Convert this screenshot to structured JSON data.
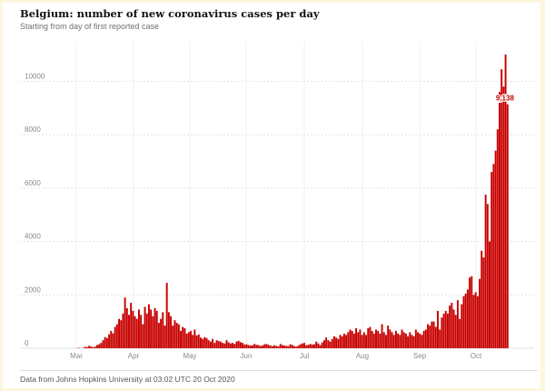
{
  "header": {
    "title": "Belgium: number of new coronavirus cases per day",
    "subtitle": "Starting from day of first reported case"
  },
  "footer": {
    "source": "Data from Johns Hopkins University at 03:02 UTC 20 Oct 2020"
  },
  "colors": {
    "bar": "#c70000",
    "grid": "#e2e2e2",
    "tick_label": "#8a8a8a",
    "background_edge": "#fdf6dd"
  },
  "chart_data": {
    "type": "bar",
    "title": "Belgium: number of new coronavirus cases per day",
    "subtitle": "Starting from day of first reported case",
    "xlabel": "",
    "ylabel": "",
    "ylim": [
      0,
      11000
    ],
    "grid": true,
    "y_ticks": [
      0,
      2000,
      4000,
      6000,
      8000,
      10000
    ],
    "x_ticks": [
      "Mar",
      "Apr",
      "May",
      "Jun",
      "Jul",
      "Aug",
      "Sep",
      "Oct"
    ],
    "annotation": {
      "label": "9,138",
      "value": 9138
    },
    "series": [
      {
        "values": [
          8,
          15,
          3,
          10,
          55,
          40,
          90,
          70,
          40,
          60,
          120,
          150,
          200,
          300,
          420,
          380,
          520,
          650,
          560,
          800,
          900,
          1100,
          1050,
          1300,
          1900,
          1500,
          1250,
          1700,
          1400,
          1200,
          1100,
          1450,
          1250,
          900,
          1550,
          1300,
          1650,
          1450,
          1200,
          1500,
          1400,
          950,
          1100,
          1350,
          850,
          2450,
          1350,
          1200,
          850,
          1050,
          950,
          900,
          650,
          800,
          750,
          550,
          600,
          650,
          500,
          700,
          480,
          520,
          400,
          350,
          420,
          380,
          300,
          250,
          350,
          200,
          300,
          270,
          250,
          200,
          180,
          300,
          220,
          180,
          200,
          160,
          250,
          280,
          230,
          200,
          140,
          150,
          120,
          100,
          110,
          160,
          130,
          120,
          90,
          100,
          150,
          160,
          130,
          100,
          80,
          110,
          90,
          70,
          160,
          120,
          100,
          90,
          80,
          150,
          120,
          80,
          60,
          100,
          150,
          180,
          200,
          110,
          130,
          160,
          140,
          150,
          250,
          180,
          120,
          220,
          300,
          400,
          300,
          250,
          350,
          450,
          400,
          350,
          500,
          450,
          550,
          500,
          600,
          700,
          650,
          550,
          750,
          600,
          700,
          500,
          600,
          500,
          750,
          800,
          650,
          550,
          700,
          650,
          550,
          900,
          600,
          500,
          850,
          700,
          600,
          500,
          650,
          550,
          500,
          700,
          600,
          550,
          450,
          600,
          500,
          450,
          700,
          600,
          550,
          500,
          650,
          700,
          900,
          850,
          1000,
          1000,
          800,
          1400,
          700,
          1150,
          1300,
          1400,
          1300,
          1600,
          1700,
          1450,
          1250,
          1800,
          1100,
          1650,
          1950,
          2050,
          2200,
          2650,
          2700,
          2000,
          2100,
          1950,
          2600,
          3650,
          3400,
          5750,
          5400,
          4000,
          6600,
          6900,
          7400,
          8200,
          9600,
          10450,
          9800,
          11000,
          9138
        ]
      }
    ]
  }
}
